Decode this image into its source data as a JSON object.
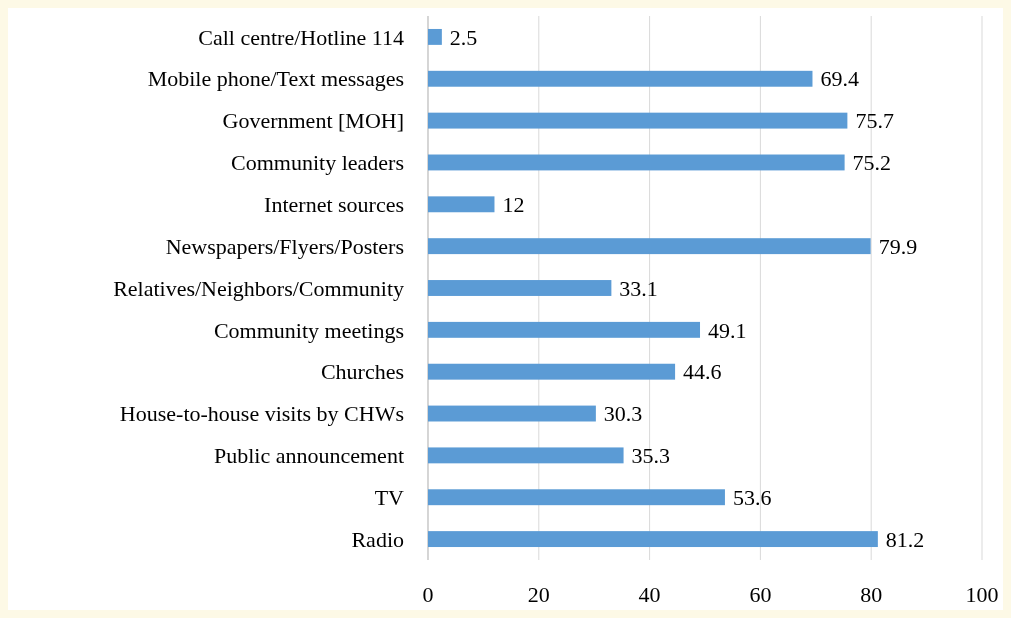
{
  "chart_data": {
    "type": "bar",
    "orientation": "horizontal",
    "categories": [
      "Call centre/Hotline 114",
      "Mobile phone/Text messages",
      "Government [MOH]",
      "Community leaders",
      "Internet sources",
      "Newspapers/Flyers/Posters",
      "Relatives/Neighbors/Community",
      "Community meetings",
      "Churches",
      "House-to-house visits by CHWs",
      "Public announcement",
      "TV",
      "Radio"
    ],
    "values": [
      2.5,
      69.4,
      75.7,
      75.2,
      12,
      79.9,
      33.1,
      49.1,
      44.6,
      30.3,
      35.3,
      53.6,
      81.2
    ],
    "color": "#5b9bd5",
    "data_labels": true,
    "xlim": [
      0,
      100
    ],
    "xticks": [
      0,
      20,
      40,
      60,
      80,
      100
    ],
    "grid": "x"
  }
}
